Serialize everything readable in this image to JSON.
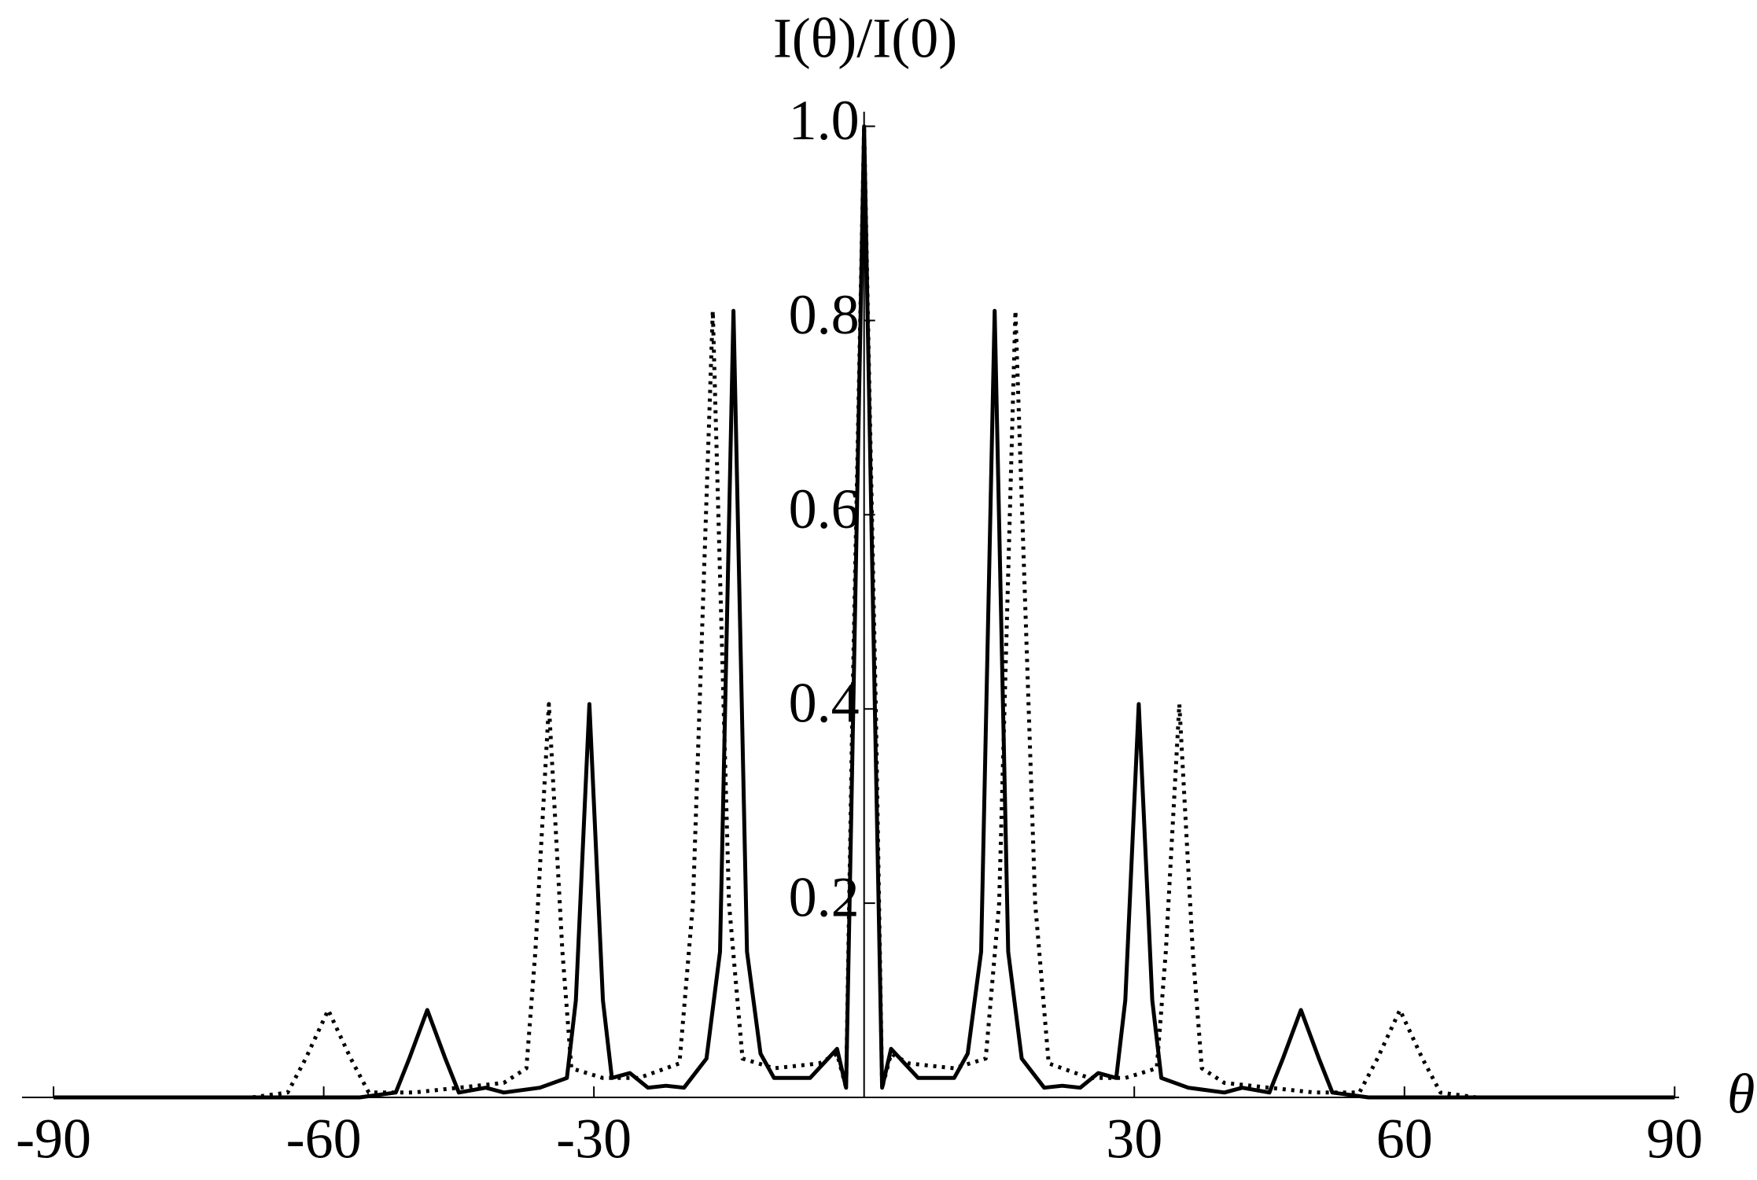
{
  "chart_data": {
    "type": "line",
    "x_label": "θ",
    "y_label": "I(θ)/I(0)",
    "xlim": [
      -93.5,
      90.5
    ],
    "ylim": [
      0,
      1.015
    ],
    "xticks": [
      -90,
      -60,
      -30,
      30,
      60,
      90
    ],
    "yticks": [
      0.2,
      0.4,
      0.6,
      0.8,
      {
        "value": 1,
        "label": "1.0"
      }
    ],
    "series": [
      {
        "color": "#000000",
        "style": "solid",
        "x": [
          -90,
          -56,
          -52,
          -50.5,
          -48.5,
          -46.5,
          -45,
          -42,
          -40,
          -36,
          -33,
          -32,
          -30.5,
          -29,
          -28,
          -26,
          -24,
          -22,
          -20,
          -17.5,
          -16,
          -14.5,
          -13,
          -11.5,
          -10,
          -8,
          -6,
          -3,
          -2,
          -1.2,
          0,
          1.2,
          2,
          3,
          6,
          8,
          10,
          11.5,
          13,
          14.5,
          16,
          17.5,
          20,
          22,
          24,
          26,
          28,
          29,
          30.5,
          32,
          33,
          36,
          40,
          42,
          45,
          46.5,
          48.5,
          50.5,
          52,
          56,
          90
        ],
        "values": [
          0,
          0,
          0.005,
          0.04,
          0.09,
          0.04,
          0.005,
          0.01,
          0.005,
          0.01,
          0.02,
          0.1,
          0.405,
          0.1,
          0.02,
          0.025,
          0.01,
          0.012,
          0.01,
          0.04,
          0.15,
          0.81,
          0.15,
          0.045,
          0.02,
          0.02,
          0.02,
          0.05,
          0.01,
          0.4,
          1.0,
          0.4,
          0.01,
          0.05,
          0.02,
          0.02,
          0.02,
          0.045,
          0.15,
          0.81,
          0.15,
          0.04,
          0.01,
          0.012,
          0.01,
          0.025,
          0.02,
          0.1,
          0.405,
          0.1,
          0.02,
          0.01,
          0.005,
          0.01,
          0.005,
          0.04,
          0.09,
          0.04,
          0.005,
          0,
          0
        ]
      },
      {
        "color": "#000000",
        "style": "dotted",
        "x": [
          -90,
          -68,
          -64,
          -62,
          -59.5,
          -57,
          -55,
          -50,
          -45,
          -40,
          -37.5,
          -36.5,
          -35,
          -33.5,
          -32.5,
          -29,
          -25,
          -20.5,
          -19,
          -16.8,
          -15,
          -13.5,
          -10,
          -5,
          -3,
          -2,
          -1.3,
          0,
          1.3,
          2,
          3,
          5,
          10,
          13.5,
          15,
          16.8,
          19,
          20.5,
          25,
          29,
          32.5,
          33.5,
          35,
          36.5,
          37.5,
          40,
          45,
          50,
          55,
          57,
          59.5,
          62,
          64,
          68,
          90
        ],
        "values": [
          0,
          0,
          0.005,
          0.04,
          0.09,
          0.04,
          0.005,
          0.005,
          0.01,
          0.015,
          0.03,
          0.15,
          0.405,
          0.15,
          0.03,
          0.02,
          0.02,
          0.035,
          0.2,
          0.81,
          0.2,
          0.04,
          0.03,
          0.035,
          0.045,
          0.01,
          0.4,
          1.0,
          0.4,
          0.01,
          0.045,
          0.035,
          0.03,
          0.04,
          0.2,
          0.81,
          0.2,
          0.035,
          0.02,
          0.02,
          0.03,
          0.15,
          0.405,
          0.15,
          0.03,
          0.015,
          0.01,
          0.005,
          0.005,
          0.04,
          0.09,
          0.04,
          0.005,
          0,
          0
        ]
      }
    ]
  }
}
